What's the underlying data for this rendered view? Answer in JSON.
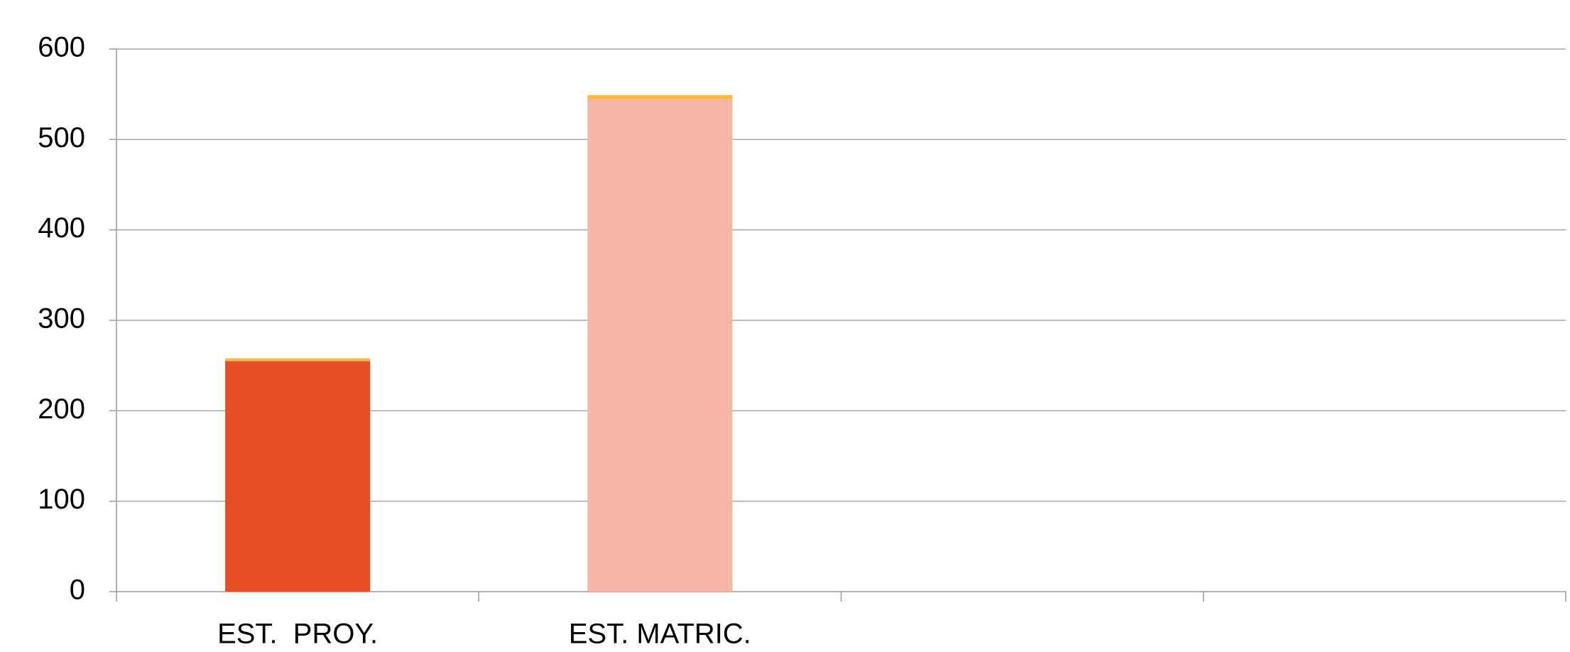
{
  "chart_data": {
    "type": "bar",
    "stacked": true,
    "categories": [
      "EST.  PROY.",
      "EST. MATRIC.",
      null,
      null
    ],
    "series": [
      {
        "colors": [
          "#e84e25",
          "#f5b6a7",
          null,
          null
        ],
        "values": [
          255,
          545,
          null,
          null
        ]
      },
      {
        "color": "#f6b942",
        "values": [
          3,
          4,
          null,
          null
        ]
      }
    ],
    "ylim": [
      0,
      600
    ],
    "yticks": [
      0,
      100,
      200,
      300,
      400,
      500,
      600
    ],
    "grid": true
  }
}
